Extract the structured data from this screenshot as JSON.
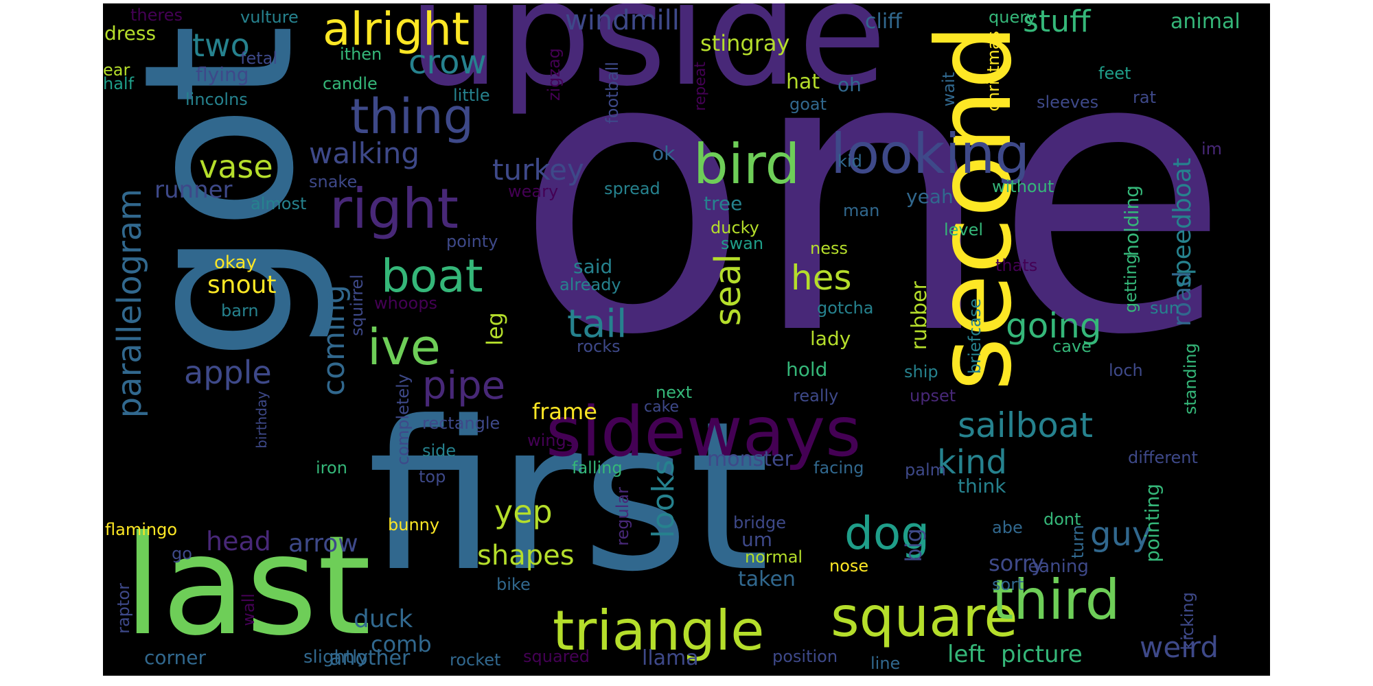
{
  "palette": {
    "background": "#000000",
    "page": "#ffffff",
    "viridis": [
      "#440154",
      "#482878",
      "#3e4989",
      "#31688e",
      "#26828e",
      "#1f9e89",
      "#35b779",
      "#6ece58",
      "#b5de2b",
      "#fde725"
    ]
  },
  "words": [
    {
      "text": "one",
      "color": "#482878"
    },
    {
      "text": "got",
      "color": "#31688e"
    },
    {
      "text": "first",
      "color": "#31688e"
    },
    {
      "text": "upside",
      "color": "#482878"
    },
    {
      "text": "last",
      "color": "#6ece58"
    },
    {
      "text": "second",
      "color": "#fde725"
    },
    {
      "text": "sideways",
      "color": "#440154"
    },
    {
      "text": "square",
      "color": "#b5de2b"
    },
    {
      "text": "triangle",
      "color": "#b5de2b"
    },
    {
      "text": "third",
      "color": "#6ece58"
    },
    {
      "text": "bird",
      "color": "#6ece58"
    },
    {
      "text": "looking",
      "color": "#3e4989"
    },
    {
      "text": "right",
      "color": "#482878"
    },
    {
      "text": "thing",
      "color": "#3e4989"
    },
    {
      "text": "alright",
      "color": "#fde725"
    },
    {
      "text": "boat",
      "color": "#35b779"
    },
    {
      "text": "ive",
      "color": "#6ece58"
    },
    {
      "text": "dog",
      "color": "#1f9e89"
    },
    {
      "text": "pipe",
      "color": "#482878"
    },
    {
      "text": "tail",
      "color": "#26828e"
    },
    {
      "text": "parallelogram",
      "color": "#31688e"
    },
    {
      "text": "sailboat",
      "color": "#26828e"
    },
    {
      "text": "hes",
      "color": "#b5de2b"
    },
    {
      "text": "seal",
      "color": "#b5de2b"
    },
    {
      "text": "going",
      "color": "#35b779"
    },
    {
      "text": "crow",
      "color": "#26828e"
    },
    {
      "text": "two",
      "color": "#26828e"
    },
    {
      "text": "vase",
      "color": "#b5de2b"
    },
    {
      "text": "apple",
      "color": "#3e4989"
    },
    {
      "text": "kind",
      "color": "#26828e"
    },
    {
      "text": "guy",
      "color": "#31688e"
    },
    {
      "text": "yep",
      "color": "#b5de2b"
    },
    {
      "text": "looks",
      "color": "#26828e"
    },
    {
      "text": "weird",
      "color": "#3e4989"
    },
    {
      "text": "coming",
      "color": "#31688e"
    },
    {
      "text": "walking",
      "color": "#3e4989"
    },
    {
      "text": "turkey",
      "color": "#3e4989"
    },
    {
      "text": "stuff",
      "color": "#35b779"
    },
    {
      "text": "windmill",
      "color": "#3e4989"
    },
    {
      "text": "shapes",
      "color": "#b5de2b"
    },
    {
      "text": "head",
      "color": "#482878"
    },
    {
      "text": "arrow",
      "color": "#3e4989"
    },
    {
      "text": "snout",
      "color": "#fde725"
    },
    {
      "text": "runner",
      "color": "#3e4989"
    },
    {
      "text": "duck",
      "color": "#31688e"
    },
    {
      "text": "comb",
      "color": "#31688e"
    },
    {
      "text": "left",
      "color": "#35b779"
    },
    {
      "text": "picture",
      "color": "#35b779"
    },
    {
      "text": "road",
      "color": "#31688e"
    },
    {
      "text": "speedboat",
      "color": "#26828e"
    },
    {
      "text": "stingray",
      "color": "#b5de2b"
    },
    {
      "text": "cliff",
      "color": "#31688e"
    },
    {
      "text": "animal",
      "color": "#35b779"
    },
    {
      "text": "frame",
      "color": "#fde725"
    },
    {
      "text": "monster",
      "color": "#3e4989"
    },
    {
      "text": "leg",
      "color": "#b5de2b"
    },
    {
      "text": "rubber",
      "color": "#b5de2b"
    },
    {
      "text": "big",
      "color": "#3e4989"
    },
    {
      "text": "sorry",
      "color": "#3e4989"
    },
    {
      "text": "another",
      "color": "#31688e"
    },
    {
      "text": "llama",
      "color": "#3e4989"
    },
    {
      "text": "taken",
      "color": "#31688e"
    },
    {
      "text": "corner",
      "color": "#31688e"
    },
    {
      "text": "dress",
      "color": "#b5de2b"
    },
    {
      "text": "flying",
      "color": "#3e4989"
    },
    {
      "text": "hat",
      "color": "#b5de2b"
    },
    {
      "text": "oh",
      "color": "#31688e"
    },
    {
      "text": "hold",
      "color": "#35b779"
    },
    {
      "text": "lady",
      "color": "#b5de2b"
    },
    {
      "text": "think",
      "color": "#26828e"
    },
    {
      "text": "um",
      "color": "#3e4989"
    },
    {
      "text": "yeah",
      "color": "#31688e"
    },
    {
      "text": "holding",
      "color": "#35b779"
    },
    {
      "text": "pointing",
      "color": "#35b779"
    },
    {
      "text": "said",
      "color": "#26828e"
    },
    {
      "text": "tree",
      "color": "#26828e"
    },
    {
      "text": "ok",
      "color": "#31688e"
    },
    {
      "text": "slightly",
      "color": "#31688e"
    },
    {
      "text": "okay",
      "color": "#fde725"
    },
    {
      "text": "vulture",
      "color": "#26828e"
    },
    {
      "text": "theres",
      "color": "#440154"
    },
    {
      "text": "fetal",
      "color": "#3e4989"
    },
    {
      "text": "ear",
      "color": "#b5de2b"
    },
    {
      "text": "half",
      "color": "#1f9e89"
    },
    {
      "text": "lincolns",
      "color": "#26828e"
    },
    {
      "text": "candle",
      "color": "#35b779"
    },
    {
      "text": "little",
      "color": "#26828e"
    },
    {
      "text": "ithen",
      "color": "#35b779"
    },
    {
      "text": "zigzag",
      "color": "#440154"
    },
    {
      "text": "football",
      "color": "#3e4989"
    },
    {
      "text": "repeat",
      "color": "#440154"
    },
    {
      "text": "goat",
      "color": "#31688e"
    },
    {
      "text": "wait",
      "color": "#31688e"
    },
    {
      "text": "christmas",
      "color": "#fde725"
    },
    {
      "text": "query",
      "color": "#35b779"
    },
    {
      "text": "feet",
      "color": "#1f9e89"
    },
    {
      "text": "rat",
      "color": "#3e4989"
    },
    {
      "text": "sleeves",
      "color": "#3e4989"
    },
    {
      "text": "im",
      "color": "#482878"
    },
    {
      "text": "kid",
      "color": "#31688e"
    },
    {
      "text": "without",
      "color": "#35b779"
    },
    {
      "text": "man",
      "color": "#31688e"
    },
    {
      "text": "spread",
      "color": "#26828e"
    },
    {
      "text": "weary",
      "color": "#440154"
    },
    {
      "text": "snake",
      "color": "#3e4989"
    },
    {
      "text": "almost",
      "color": "#26828e"
    },
    {
      "text": "pointy",
      "color": "#3e4989"
    },
    {
      "text": "level",
      "color": "#35b779"
    },
    {
      "text": "ducky",
      "color": "#b5de2b"
    },
    {
      "text": "swan",
      "color": "#1f9e89"
    },
    {
      "text": "ness",
      "color": "#b5de2b"
    },
    {
      "text": "getting",
      "color": "#35b779"
    },
    {
      "text": "thats",
      "color": "#440154"
    },
    {
      "text": "already",
      "color": "#26828e"
    },
    {
      "text": "gotcha",
      "color": "#26828e"
    },
    {
      "text": "sun",
      "color": "#26828e"
    },
    {
      "text": "barn",
      "color": "#26828e"
    },
    {
      "text": "squirrel",
      "color": "#3e4989"
    },
    {
      "text": "whoops",
      "color": "#440154"
    },
    {
      "text": "briefcase",
      "color": "#26828e"
    },
    {
      "text": "cave",
      "color": "#35b779"
    },
    {
      "text": "rocks",
      "color": "#3e4989"
    },
    {
      "text": "ship",
      "color": "#26828e"
    },
    {
      "text": "loch",
      "color": "#3e4989"
    },
    {
      "text": "next",
      "color": "#35b779"
    },
    {
      "text": "really",
      "color": "#3e4989"
    },
    {
      "text": "upset",
      "color": "#482878"
    },
    {
      "text": "standing",
      "color": "#35b779"
    },
    {
      "text": "cake",
      "color": "#3e4989"
    },
    {
      "text": "completely",
      "color": "#3e4989"
    },
    {
      "text": "rectangle",
      "color": "#3e4989"
    },
    {
      "text": "birthday",
      "color": "#3e4989"
    },
    {
      "text": "side",
      "color": "#26828e"
    },
    {
      "text": "wings",
      "color": "#440154"
    },
    {
      "text": "falling",
      "color": "#35b779"
    },
    {
      "text": "facing",
      "color": "#31688e"
    },
    {
      "text": "different",
      "color": "#3e4989"
    },
    {
      "text": "top",
      "color": "#3e4989"
    },
    {
      "text": "iron",
      "color": "#35b779"
    },
    {
      "text": "palm",
      "color": "#3e4989"
    },
    {
      "text": "flamingo",
      "color": "#fde725"
    },
    {
      "text": "bunny",
      "color": "#fde725"
    },
    {
      "text": "regular",
      "color": "#482878"
    },
    {
      "text": "bridge",
      "color": "#3e4989"
    },
    {
      "text": "abe",
      "color": "#31688e"
    },
    {
      "text": "dont",
      "color": "#35b779"
    },
    {
      "text": "turn",
      "color": "#31688e"
    },
    {
      "text": "go",
      "color": "#3e4989"
    },
    {
      "text": "normal",
      "color": "#b5de2b"
    },
    {
      "text": "nose",
      "color": "#fde725"
    },
    {
      "text": "sort",
      "color": "#31688e"
    },
    {
      "text": "leaning",
      "color": "#3e4989"
    },
    {
      "text": "kicking",
      "color": "#3e4989"
    },
    {
      "text": "raptor",
      "color": "#3e4989"
    },
    {
      "text": "bike",
      "color": "#31688e"
    },
    {
      "text": "wall",
      "color": "#440154"
    },
    {
      "text": "rocket",
      "color": "#31688e"
    },
    {
      "text": "squared",
      "color": "#440154"
    },
    {
      "text": "position",
      "color": "#3e4989"
    },
    {
      "text": "line",
      "color": "#31688e"
    }
  ]
}
